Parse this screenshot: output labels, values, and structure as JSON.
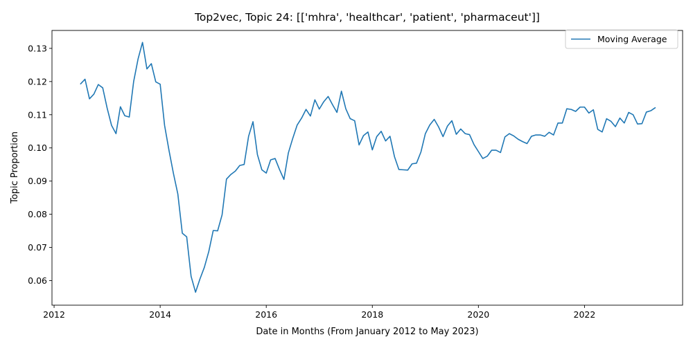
{
  "chart_data": {
    "type": "line",
    "title": "Top2vec, Topic 24: [['mhra', 'healthcar', 'patient', 'pharmaceut']]",
    "xlabel": "Date in Months (From January 2012 to May 2023)",
    "ylabel": "Topic Proportion",
    "xlim": [
      2011.96,
      2023.85
    ],
    "ylim": [
      0.0526,
      0.1354
    ],
    "x_ticks": [
      2012,
      2014,
      2016,
      2018,
      2020,
      2022
    ],
    "y_ticks": [
      0.06,
      0.07,
      0.08,
      0.09,
      0.1,
      0.11,
      0.12,
      0.13
    ],
    "y_tick_labels": [
      "0.06",
      "0.07",
      "0.08",
      "0.09",
      "0.10",
      "0.11",
      "0.12",
      "0.13"
    ],
    "legend_position": "top-right",
    "grid": false,
    "series": [
      {
        "name": "Moving Average",
        "color": "#1f77b4",
        "x": [
          2012.5,
          2012.583,
          2012.667,
          2012.75,
          2012.833,
          2012.917,
          2013.0,
          2013.083,
          2013.167,
          2013.25,
          2013.333,
          2013.417,
          2013.5,
          2013.583,
          2013.667,
          2013.75,
          2013.833,
          2013.917,
          2014.0,
          2014.083,
          2014.167,
          2014.25,
          2014.333,
          2014.417,
          2014.5,
          2014.583,
          2014.667,
          2014.75,
          2014.833,
          2014.917,
          2015.0,
          2015.083,
          2015.167,
          2015.25,
          2015.333,
          2015.417,
          2015.5,
          2015.583,
          2015.667,
          2015.75,
          2015.833,
          2015.917,
          2016.0,
          2016.083,
          2016.167,
          2016.25,
          2016.333,
          2016.417,
          2016.5,
          2016.583,
          2016.667,
          2016.75,
          2016.833,
          2016.917,
          2017.0,
          2017.083,
          2017.167,
          2017.25,
          2017.333,
          2017.417,
          2017.5,
          2017.583,
          2017.667,
          2017.75,
          2017.833,
          2017.917,
          2018.0,
          2018.083,
          2018.167,
          2018.25,
          2018.333,
          2018.417,
          2018.5,
          2018.583,
          2018.667,
          2018.75,
          2018.833,
          2018.917,
          2019.0,
          2019.083,
          2019.167,
          2019.25,
          2019.333,
          2019.417,
          2019.5,
          2019.583,
          2019.667,
          2019.75,
          2019.833,
          2019.917,
          2020.0,
          2020.083,
          2020.167,
          2020.25,
          2020.333,
          2020.417,
          2020.5,
          2020.583,
          2020.667,
          2020.75,
          2020.833,
          2020.917,
          2021.0,
          2021.083,
          2021.167,
          2021.25,
          2021.333,
          2021.417,
          2021.5,
          2021.583,
          2021.667,
          2021.75,
          2021.833,
          2021.917,
          2022.0,
          2022.083,
          2022.167,
          2022.25,
          2022.333,
          2022.417,
          2022.5,
          2022.583,
          2022.667,
          2022.75,
          2022.833,
          2022.917,
          2023.0,
          2023.083,
          2023.167,
          2023.25,
          2023.333
        ],
        "y": [
          0.1193,
          0.1207,
          0.1148,
          0.1162,
          0.1191,
          0.1181,
          0.112,
          0.1068,
          0.1043,
          0.1124,
          0.1097,
          0.1093,
          0.12,
          0.1268,
          0.1318,
          0.1238,
          0.1254,
          0.1199,
          0.1192,
          0.1068,
          0.0992,
          0.0923,
          0.0861,
          0.0743,
          0.0732,
          0.0613,
          0.0565,
          0.0605,
          0.064,
          0.0688,
          0.0751,
          0.075,
          0.0798,
          0.0906,
          0.092,
          0.093,
          0.0947,
          0.095,
          0.1035,
          0.1079,
          0.098,
          0.0934,
          0.0924,
          0.0964,
          0.0968,
          0.0935,
          0.0905,
          0.0985,
          0.1029,
          0.1069,
          0.109,
          0.1116,
          0.1096,
          0.1145,
          0.1117,
          0.1139,
          0.1155,
          0.113,
          0.1107,
          0.1171,
          0.1118,
          0.1088,
          0.1082,
          0.1009,
          0.1037,
          0.1048,
          0.0994,
          0.1034,
          0.105,
          0.1021,
          0.1035,
          0.0974,
          0.0935,
          0.0934,
          0.0933,
          0.0952,
          0.0954,
          0.0988,
          0.1043,
          0.1069,
          0.1086,
          0.1063,
          0.1034,
          0.1066,
          0.1082,
          0.1041,
          0.1057,
          0.1043,
          0.104,
          0.101,
          0.0989,
          0.0968,
          0.0975,
          0.0993,
          0.0993,
          0.0986,
          0.1033,
          0.1043,
          0.1036,
          0.1026,
          0.1019,
          0.1013,
          0.1035,
          0.1039,
          0.1039,
          0.1035,
          0.1047,
          0.1039,
          0.1075,
          0.1075,
          0.1118,
          0.1116,
          0.111,
          0.1123,
          0.1123,
          0.1105,
          0.1115,
          0.1056,
          0.1048,
          0.1088,
          0.108,
          0.1064,
          0.109,
          0.1075,
          0.1107,
          0.11,
          0.1072,
          0.1073,
          0.1108,
          0.1112,
          0.1121
        ]
      }
    ]
  }
}
